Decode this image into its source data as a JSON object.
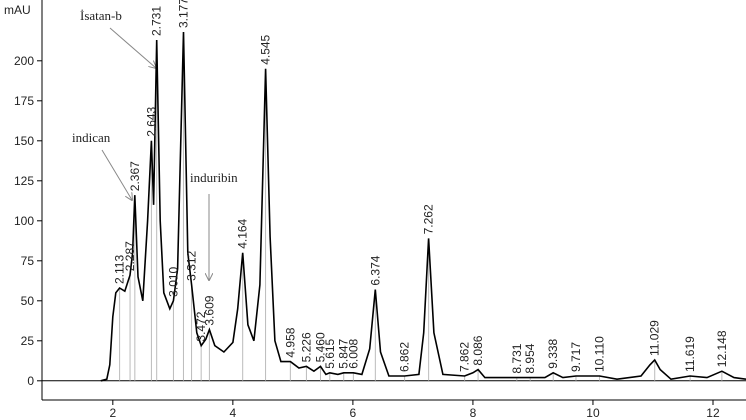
{
  "chart_data": {
    "type": "line",
    "y_label": "mAU",
    "color": "#000000",
    "x": [
      1.8,
      1.9,
      1.95,
      2.0,
      2.05,
      2.113,
      2.2,
      2.287,
      2.33,
      2.367,
      2.42,
      2.5,
      2.58,
      2.643,
      2.68,
      2.731,
      2.79,
      2.85,
      2.95,
      3.01,
      3.08,
      3.177,
      3.25,
      3.312,
      3.4,
      3.472,
      3.55,
      3.609,
      3.7,
      3.85,
      4.0,
      4.08,
      4.164,
      4.25,
      4.35,
      4.45,
      4.545,
      4.62,
      4.7,
      4.8,
      4.958,
      5.1,
      5.226,
      5.35,
      5.46,
      5.55,
      5.615,
      5.75,
      5.847,
      6.008,
      6.15,
      6.28,
      6.374,
      6.46,
      6.6,
      6.862,
      7.1,
      7.18,
      7.262,
      7.35,
      7.5,
      7.862,
      8.0,
      8.086,
      8.2,
      8.731,
      8.954,
      9.2,
      9.338,
      9.5,
      9.717,
      10.11,
      10.4,
      10.8,
      10.95,
      11.029,
      11.12,
      11.3,
      11.619,
      11.9,
      12.148,
      12.35,
      12.55
    ],
    "values": [
      0,
      1,
      10,
      40,
      55,
      58,
      56,
      66,
      80,
      116,
      65,
      50,
      100,
      150,
      110,
      213,
      100,
      55,
      45,
      50,
      70,
      218,
      80,
      60,
      30,
      22,
      26,
      32,
      22,
      18,
      24,
      45,
      80,
      35,
      25,
      60,
      195,
      90,
      25,
      12,
      12,
      8,
      9,
      6,
      9,
      4,
      5,
      4,
      5,
      5,
      4,
      20,
      57,
      18,
      3,
      3,
      4,
      30,
      89,
      30,
      4,
      3,
      5,
      7,
      2,
      2,
      2,
      2,
      5,
      2,
      3,
      3,
      1,
      3,
      10,
      13,
      7,
      1,
      3,
      2,
      6,
      2,
      1
    ],
    "peak_times": [
      2.113,
      2.287,
      2.367,
      2.643,
      2.731,
      3.01,
      3.177,
      3.312,
      3.472,
      3.609,
      4.164,
      4.545,
      4.958,
      5.226,
      5.46,
      5.615,
      5.847,
      6.008,
      6.374,
      6.862,
      7.262,
      7.862,
      8.086,
      8.731,
      8.954,
      9.338,
      9.717,
      10.11,
      11.029,
      11.619,
      12.148
    ],
    "peak_time_labels": [
      "2.113",
      "2.287",
      "2.367",
      "2.643",
      "2.731",
      "3.010",
      "3.177",
      "3.312",
      "3.472",
      "3.609",
      "4.164",
      "4.545",
      "4.958",
      "5.226",
      "5.460",
      "5.615",
      "5.847",
      "6.008",
      "6.374",
      "6.862",
      "7.262",
      "7.862",
      "8.086",
      "8.731",
      "8.954",
      "9.338",
      "9.717",
      "10.110",
      "11.029",
      "11.619",
      "12.148"
    ],
    "peak_heights": [
      58,
      66,
      116,
      150,
      213,
      50,
      218,
      60,
      22,
      32,
      80,
      195,
      12,
      9,
      9,
      5,
      5,
      5,
      57,
      3,
      89,
      3,
      7,
      2,
      2,
      5,
      3,
      3,
      13,
      3,
      6
    ],
    "annotations": [
      "İsatan-b",
      "indican",
      "induribin"
    ],
    "xlim": [
      0.82,
      12.55
    ],
    "xticks": [
      2,
      4,
      6,
      8,
      10,
      12
    ],
    "ylim": [
      -12,
      238
    ],
    "yticks": [
      0,
      25,
      50,
      75,
      100,
      125,
      150,
      175,
      200
    ],
    "grid": false
  }
}
